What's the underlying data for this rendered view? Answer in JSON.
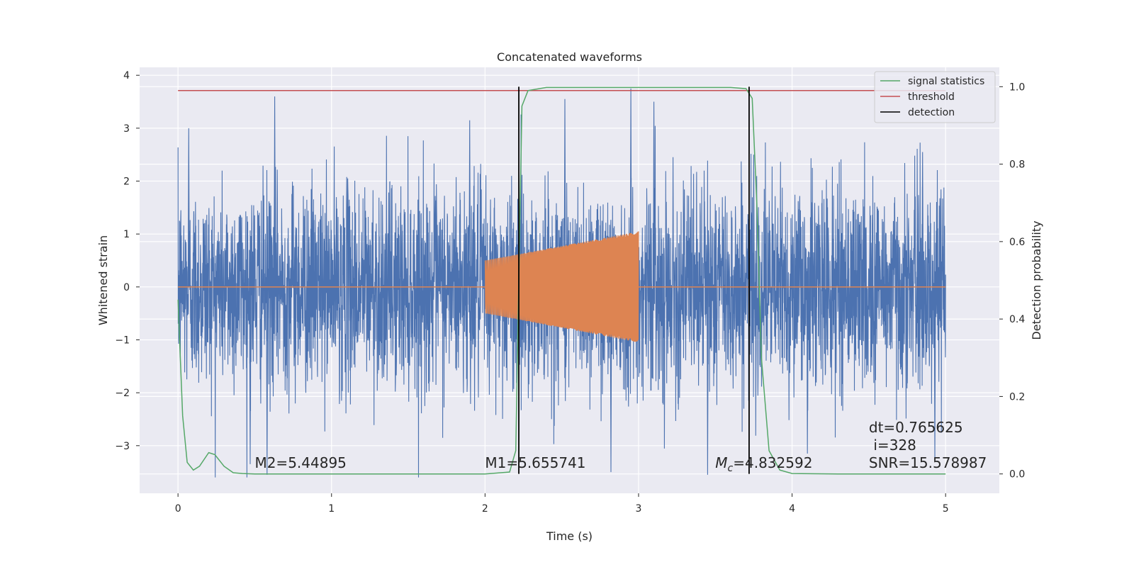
{
  "chart_data": {
    "type": "line",
    "title": "Concatenated waveforms",
    "xlabel": "Time (s)",
    "ylabel": "Whitened strain",
    "y2label": "Detection probability",
    "xlim": [
      -0.25,
      5.35
    ],
    "ylim": [
      -3.9,
      4.15
    ],
    "y2lim": [
      -0.05,
      1.05
    ],
    "xticks": [
      0,
      1,
      2,
      3,
      4,
      5
    ],
    "yticks": [
      -3,
      -2,
      -1,
      0,
      1,
      2,
      3,
      4
    ],
    "yticklabels": [
      "−3",
      "−2",
      "−1",
      "0",
      "1",
      "2",
      "3",
      "4"
    ],
    "y2ticks": [
      0.0,
      0.2,
      0.4,
      0.6,
      0.8,
      1.0
    ],
    "y2ticklabels": [
      "0.0",
      "0.2",
      "0.4",
      "0.6",
      "0.8",
      "1.0"
    ],
    "grid": true,
    "legend_position": "top-right",
    "legend": [
      "signal statistics",
      "threshold",
      "detection"
    ],
    "colors": {
      "noise": "#4c72b0",
      "signal": "#dd8452",
      "statistic": "#55a868",
      "threshold": "#c44e52",
      "detection": "#000000",
      "background": "#eaeaf2"
    },
    "noise_series": {
      "x_range": [
        0,
        5
      ],
      "envelope_max": 3.75,
      "envelope_min": -3.6,
      "peak_points": [
        [
          0.07,
          3.0
        ],
        [
          0.63,
          3.6
        ],
        [
          1.9,
          3.15
        ],
        [
          2.52,
          3.55
        ],
        [
          2.95,
          3.75
        ],
        [
          3.1,
          3.5
        ],
        [
          3.75,
          2.5
        ],
        [
          4.85,
          2.55
        ]
      ],
      "trough_points": [
        [
          0.47,
          -3.35
        ],
        [
          0.58,
          -3.55
        ],
        [
          2.82,
          -3.5
        ],
        [
          3.45,
          -3.55
        ],
        [
          4.1,
          -3.15
        ],
        [
          4.93,
          -3.3
        ]
      ]
    },
    "signal_series": {
      "x_start": 2.0,
      "x_end": 3.0,
      "amplitude_start": 0.5,
      "amplitude_end": 1.05,
      "value_elsewhere": 0
    },
    "statistic_series": {
      "x": [
        0,
        0.01,
        0.03,
        0.06,
        0.1,
        0.14,
        0.2,
        0.24,
        0.3,
        0.36,
        0.42,
        0.5,
        1.0,
        2.0,
        2.16,
        2.2,
        2.22,
        2.24,
        2.28,
        2.4,
        3.6,
        3.7,
        3.74,
        3.77,
        3.8,
        3.85,
        3.92,
        4.0,
        4.3,
        5.0
      ],
      "y": [
        0.45,
        0.35,
        0.15,
        0.03,
        0.01,
        0.02,
        0.055,
        0.05,
        0.02,
        0.003,
        0.001,
        0.0,
        0.0,
        0.0,
        0.005,
        0.06,
        0.5,
        0.95,
        0.99,
        0.998,
        0.998,
        0.995,
        0.97,
        0.7,
        0.3,
        0.06,
        0.01,
        0.001,
        0.0,
        0.0
      ]
    },
    "threshold_value": 0.99,
    "threshold_x_range": [
      0,
      5
    ],
    "detections": [
      2.22,
      3.72
    ],
    "annotations": {
      "m2": "M2=5.44895",
      "m1": "M1=5.655741",
      "mc_symbol": "M",
      "mc_subscript": "c",
      "mc_value": "=4.832592",
      "dt": "dt=0.765625",
      "i": "i=328",
      "snr": "SNR=15.578987"
    }
  }
}
